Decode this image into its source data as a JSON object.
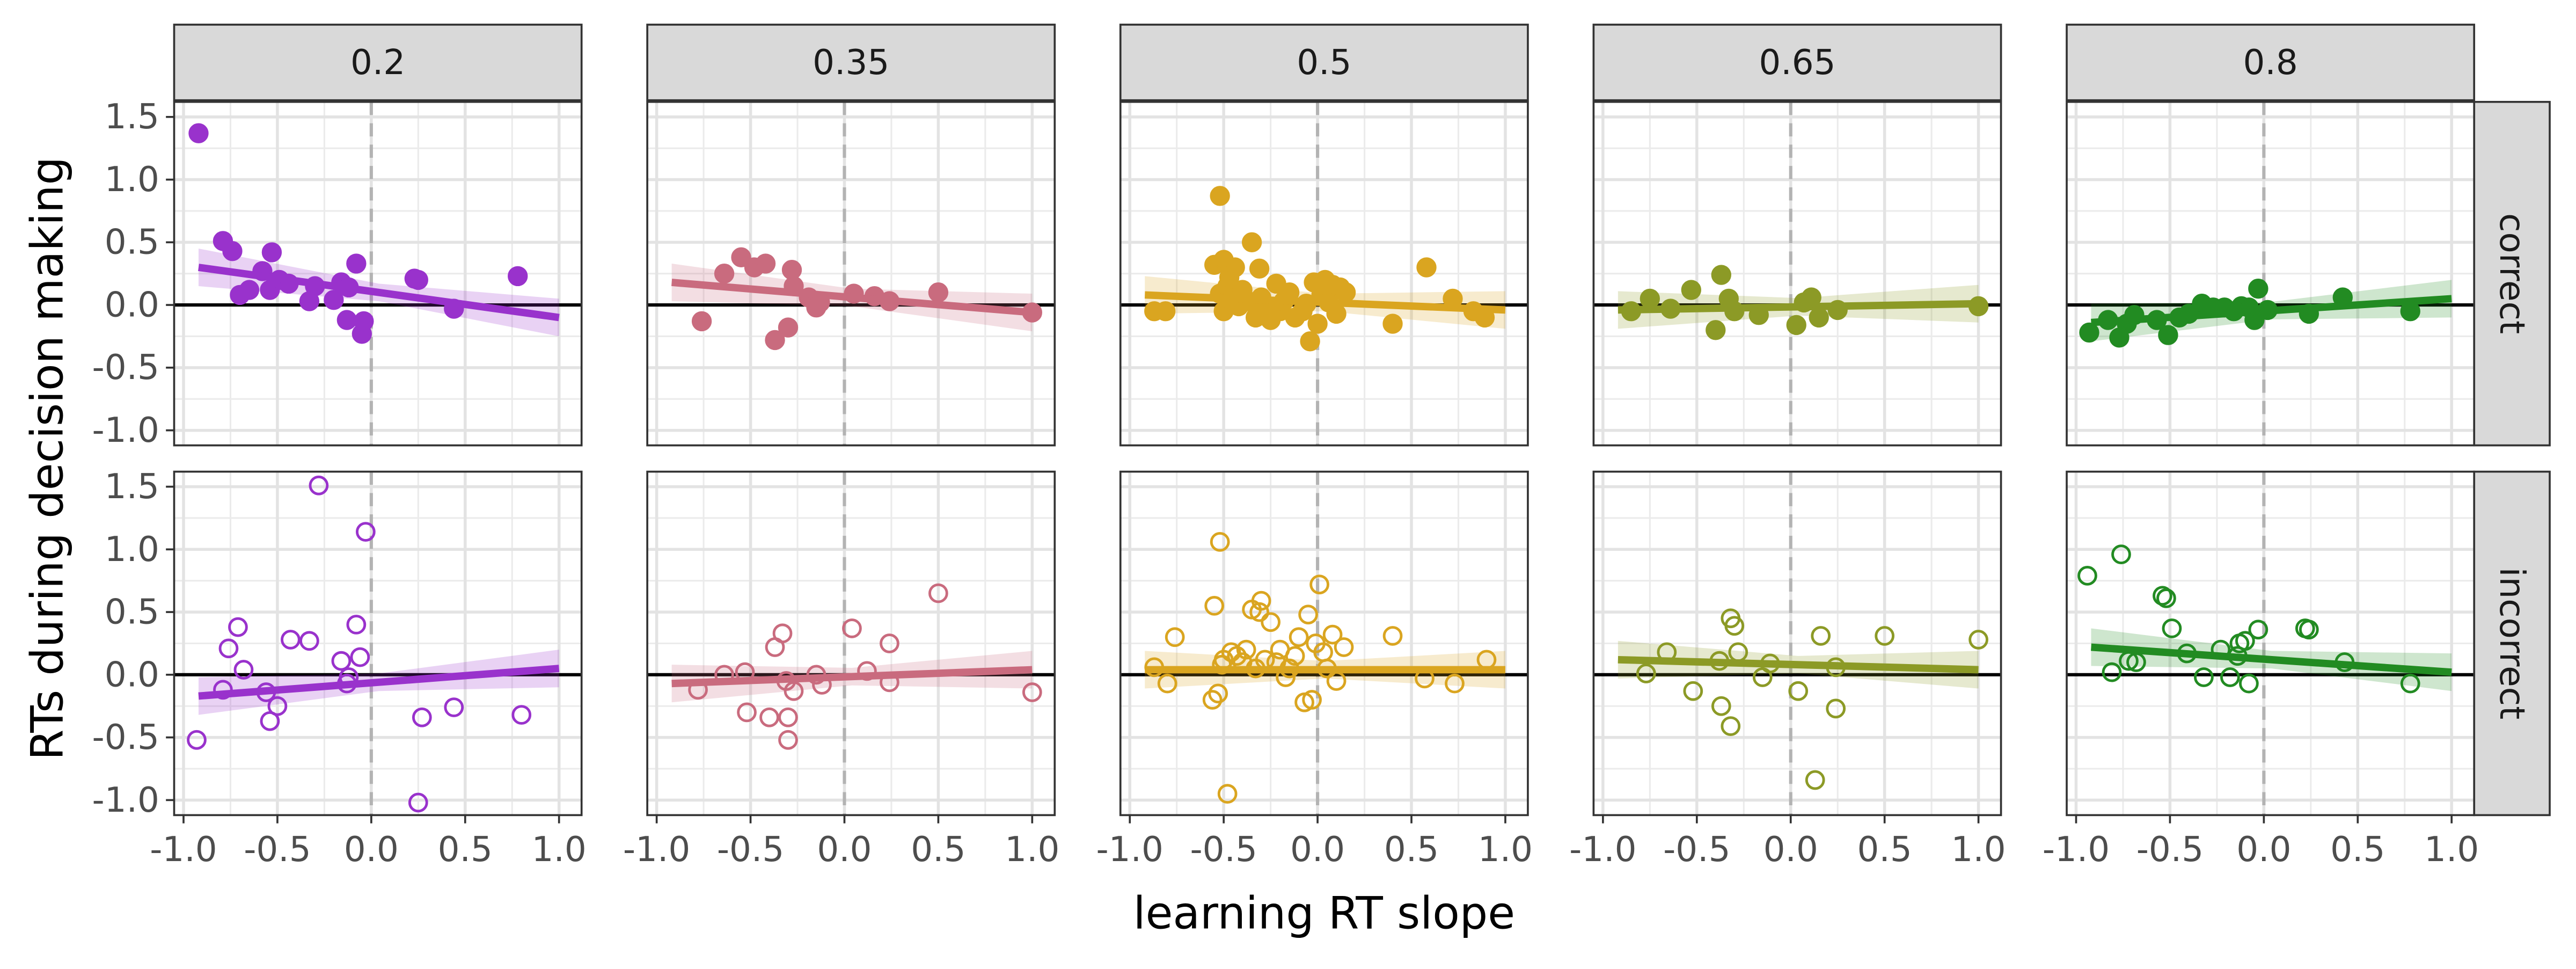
{
  "chart_data": {
    "type": "scatter",
    "facet_columns": [
      "0.2",
      "0.35",
      "0.5",
      "0.65",
      "0.8"
    ],
    "facet_rows": [
      "correct",
      "incorrect"
    ],
    "xlabel": "learning RT slope",
    "ylabel": "RTs during decision making",
    "xlim": [
      -1.0,
      1.0
    ],
    "ylim": [
      -1.0,
      1.5
    ],
    "x_ticks": [
      "-1.0",
      "-0.5",
      "0.0",
      "0.5",
      "1.0"
    ],
    "y_ticks": [
      "-1.0",
      "-0.5",
      "0.0",
      "0.5",
      "1.0",
      "1.5"
    ],
    "colors": [
      "#9932CC",
      "#C96B7E",
      "#DAA520",
      "#8C9A26",
      "#228B22"
    ],
    "grid": true,
    "reference_lines": {
      "horizontal_y": 0,
      "vertical_x": 0
    },
    "panels": [
      {
        "column": "0.2",
        "row": "correct",
        "fit": [
          [
            -0.92,
            0.3
          ],
          [
            1.0,
            -0.1
          ]
        ],
        "points": [
          [
            -0.92,
            1.37
          ],
          [
            -0.79,
            0.51
          ],
          [
            -0.74,
            0.43
          ],
          [
            -0.7,
            0.08
          ],
          [
            -0.65,
            0.12
          ],
          [
            -0.58,
            0.27
          ],
          [
            -0.54,
            0.12
          ],
          [
            -0.53,
            0.42
          ],
          [
            -0.49,
            0.2
          ],
          [
            -0.44,
            0.17
          ],
          [
            -0.33,
            0.03
          ],
          [
            -0.3,
            0.15
          ],
          [
            -0.2,
            0.04
          ],
          [
            -0.16,
            0.18
          ],
          [
            -0.13,
            -0.12
          ],
          [
            -0.12,
            0.14
          ],
          [
            -0.08,
            0.33
          ],
          [
            -0.05,
            -0.23
          ],
          [
            -0.04,
            -0.13
          ],
          [
            0.23,
            0.21
          ],
          [
            0.25,
            0.2
          ],
          [
            0.44,
            -0.03
          ],
          [
            0.78,
            0.23
          ]
        ]
      },
      {
        "column": "0.35",
        "row": "correct",
        "fit": [
          [
            -0.92,
            0.18
          ],
          [
            1.0,
            -0.06
          ]
        ],
        "points": [
          [
            -0.76,
            -0.13
          ],
          [
            -0.64,
            0.25
          ],
          [
            -0.55,
            0.38
          ],
          [
            -0.48,
            0.3
          ],
          [
            -0.42,
            0.33
          ],
          [
            -0.37,
            -0.28
          ],
          [
            -0.3,
            -0.18
          ],
          [
            -0.28,
            0.28
          ],
          [
            -0.27,
            0.15
          ],
          [
            -0.19,
            0.06
          ],
          [
            -0.15,
            -0.02
          ],
          [
            -0.13,
            0.02
          ],
          [
            0.05,
            0.09
          ],
          [
            0.16,
            0.07
          ],
          [
            0.24,
            0.03
          ],
          [
            0.5,
            0.1
          ],
          [
            1.0,
            -0.06
          ]
        ]
      },
      {
        "column": "0.5",
        "row": "correct",
        "fit": [
          [
            -0.92,
            0.08
          ],
          [
            1.0,
            -0.04
          ]
        ],
        "points": [
          [
            -0.87,
            -0.05
          ],
          [
            -0.81,
            -0.05
          ],
          [
            -0.55,
            0.32
          ],
          [
            -0.52,
            0.87
          ],
          [
            -0.52,
            0.09
          ],
          [
            -0.5,
            0.36
          ],
          [
            -0.5,
            -0.05
          ],
          [
            -0.48,
            0.15
          ],
          [
            -0.47,
            0.22
          ],
          [
            -0.46,
            0.02
          ],
          [
            -0.44,
            0.3
          ],
          [
            -0.42,
            -0.01
          ],
          [
            -0.4,
            0.12
          ],
          [
            -0.37,
            0.03
          ],
          [
            -0.35,
            0.5
          ],
          [
            -0.33,
            -0.1
          ],
          [
            -0.31,
            0.29
          ],
          [
            -0.3,
            0.06
          ],
          [
            -0.28,
            -0.02
          ],
          [
            -0.25,
            -0.12
          ],
          [
            -0.22,
            0.17
          ],
          [
            -0.2,
            -0.05
          ],
          [
            -0.18,
            0.03
          ],
          [
            -0.15,
            0.1
          ],
          [
            -0.12,
            -0.1
          ],
          [
            -0.08,
            -0.05
          ],
          [
            -0.06,
            0.01
          ],
          [
            -0.04,
            -0.29
          ],
          [
            -0.02,
            0.18
          ],
          [
            0.0,
            -0.15
          ],
          [
            0.02,
            0.08
          ],
          [
            0.04,
            0.2
          ],
          [
            0.06,
            0.02
          ],
          [
            0.08,
            0.16
          ],
          [
            0.1,
            -0.07
          ],
          [
            0.12,
            0.14
          ],
          [
            0.15,
            0.1
          ],
          [
            0.4,
            -0.15
          ],
          [
            0.58,
            0.3
          ],
          [
            0.72,
            0.05
          ],
          [
            0.83,
            -0.05
          ],
          [
            0.89,
            -0.1
          ]
        ]
      },
      {
        "column": "0.65",
        "row": "correct",
        "fit": [
          [
            -0.92,
            -0.04
          ],
          [
            1.0,
            0.01
          ]
        ],
        "points": [
          [
            -0.85,
            -0.05
          ],
          [
            -0.75,
            0.05
          ],
          [
            -0.64,
            -0.03
          ],
          [
            -0.53,
            0.12
          ],
          [
            -0.4,
            -0.2
          ],
          [
            -0.37,
            0.24
          ],
          [
            -0.33,
            0.05
          ],
          [
            -0.3,
            -0.05
          ],
          [
            -0.17,
            -0.08
          ],
          [
            0.03,
            -0.16
          ],
          [
            0.07,
            0.02
          ],
          [
            0.11,
            0.06
          ],
          [
            0.15,
            -0.1
          ],
          [
            0.25,
            -0.04
          ],
          [
            1.0,
            -0.01
          ]
        ]
      },
      {
        "column": "0.8",
        "row": "correct",
        "fit": [
          [
            -0.92,
            -0.14
          ],
          [
            1.0,
            0.05
          ]
        ],
        "points": [
          [
            -0.93,
            -0.22
          ],
          [
            -0.83,
            -0.12
          ],
          [
            -0.77,
            -0.26
          ],
          [
            -0.73,
            -0.15
          ],
          [
            -0.69,
            -0.08
          ],
          [
            -0.57,
            -0.12
          ],
          [
            -0.51,
            -0.24
          ],
          [
            -0.45,
            -0.1
          ],
          [
            -0.4,
            -0.07
          ],
          [
            -0.33,
            0.01
          ],
          [
            -0.27,
            -0.02
          ],
          [
            -0.21,
            -0.02
          ],
          [
            -0.16,
            -0.05
          ],
          [
            -0.12,
            -0.01
          ],
          [
            -0.08,
            -0.02
          ],
          [
            -0.05,
            -0.12
          ],
          [
            -0.03,
            0.13
          ],
          [
            0.02,
            -0.04
          ],
          [
            0.24,
            -0.07
          ],
          [
            0.42,
            0.06
          ],
          [
            0.78,
            -0.05
          ]
        ]
      },
      {
        "column": "0.2",
        "row": "incorrect",
        "fit": [
          [
            -0.92,
            -0.17
          ],
          [
            1.0,
            0.05
          ]
        ],
        "points": [
          [
            -0.93,
            -0.52
          ],
          [
            -0.79,
            -0.12
          ],
          [
            -0.76,
            0.21
          ],
          [
            -0.71,
            0.38
          ],
          [
            -0.68,
            0.04
          ],
          [
            -0.56,
            -0.14
          ],
          [
            -0.54,
            -0.37
          ],
          [
            -0.5,
            -0.25
          ],
          [
            -0.43,
            0.28
          ],
          [
            -0.33,
            0.27
          ],
          [
            -0.28,
            1.51
          ],
          [
            -0.16,
            0.11
          ],
          [
            -0.13,
            -0.07
          ],
          [
            -0.12,
            -0.02
          ],
          [
            -0.08,
            0.4
          ],
          [
            -0.06,
            0.14
          ],
          [
            -0.03,
            1.14
          ],
          [
            0.25,
            -1.02
          ],
          [
            0.27,
            -0.34
          ],
          [
            0.44,
            -0.26
          ],
          [
            0.8,
            -0.32
          ]
        ]
      },
      {
        "column": "0.35",
        "row": "incorrect",
        "fit": [
          [
            -0.92,
            -0.07
          ],
          [
            1.0,
            0.04
          ]
        ],
        "points": [
          [
            -0.78,
            -0.12
          ],
          [
            -0.64,
            0.0
          ],
          [
            -0.53,
            0.02
          ],
          [
            -0.52,
            -0.3
          ],
          [
            -0.4,
            -0.34
          ],
          [
            -0.37,
            0.22
          ],
          [
            -0.33,
            0.33
          ],
          [
            -0.31,
            -0.05
          ],
          [
            -0.3,
            -0.34
          ],
          [
            -0.3,
            -0.52
          ],
          [
            -0.27,
            -0.13
          ],
          [
            -0.15,
            0.0
          ],
          [
            -0.12,
            -0.08
          ],
          [
            0.04,
            0.37
          ],
          [
            0.12,
            0.03
          ],
          [
            0.24,
            0.25
          ],
          [
            0.24,
            -0.06
          ],
          [
            0.5,
            0.65
          ],
          [
            1.0,
            -0.14
          ]
        ]
      },
      {
        "column": "0.5",
        "row": "incorrect",
        "fit": [
          [
            -0.92,
            0.04
          ],
          [
            1.0,
            0.04
          ]
        ],
        "points": [
          [
            -0.87,
            0.06
          ],
          [
            -0.8,
            -0.07
          ],
          [
            -0.76,
            0.3
          ],
          [
            -0.56,
            -0.2
          ],
          [
            -0.55,
            0.55
          ],
          [
            -0.53,
            -0.15
          ],
          [
            -0.52,
            1.06
          ],
          [
            -0.51,
            0.08
          ],
          [
            -0.5,
            0.12
          ],
          [
            -0.48,
            -0.95
          ],
          [
            -0.46,
            0.18
          ],
          [
            -0.43,
            0.15
          ],
          [
            -0.4,
            0.1
          ],
          [
            -0.38,
            0.2
          ],
          [
            -0.35,
            0.52
          ],
          [
            -0.33,
            0.05
          ],
          [
            -0.31,
            0.5
          ],
          [
            -0.3,
            0.59
          ],
          [
            -0.28,
            0.12
          ],
          [
            -0.25,
            0.42
          ],
          [
            -0.22,
            0.1
          ],
          [
            -0.2,
            0.2
          ],
          [
            -0.17,
            -0.02
          ],
          [
            -0.15,
            0.05
          ],
          [
            -0.12,
            0.15
          ],
          [
            -0.1,
            0.3
          ],
          [
            -0.07,
            -0.22
          ],
          [
            -0.05,
            0.48
          ],
          [
            -0.03,
            -0.2
          ],
          [
            -0.01,
            0.25
          ],
          [
            0.01,
            0.72
          ],
          [
            0.03,
            0.18
          ],
          [
            0.05,
            0.05
          ],
          [
            0.08,
            0.32
          ],
          [
            0.1,
            -0.05
          ],
          [
            0.14,
            0.22
          ],
          [
            0.4,
            0.31
          ],
          [
            0.57,
            -0.03
          ],
          [
            0.73,
            -0.07
          ],
          [
            0.9,
            0.12
          ]
        ]
      },
      {
        "column": "0.65",
        "row": "incorrect",
        "fit": [
          [
            -0.92,
            0.12
          ],
          [
            1.0,
            0.04
          ]
        ],
        "points": [
          [
            -0.77,
            0.01
          ],
          [
            -0.66,
            0.18
          ],
          [
            -0.52,
            -0.13
          ],
          [
            -0.38,
            0.11
          ],
          [
            -0.37,
            -0.25
          ],
          [
            -0.32,
            -0.41
          ],
          [
            -0.32,
            0.45
          ],
          [
            -0.3,
            0.39
          ],
          [
            -0.28,
            0.18
          ],
          [
            -0.15,
            -0.02
          ],
          [
            -0.11,
            0.09
          ],
          [
            0.04,
            -0.13
          ],
          [
            0.13,
            -0.84
          ],
          [
            0.16,
            0.31
          ],
          [
            0.24,
            -0.27
          ],
          [
            0.24,
            0.06
          ],
          [
            0.5,
            0.31
          ],
          [
            1.0,
            0.28
          ]
        ]
      },
      {
        "column": "0.8",
        "row": "incorrect",
        "fit": [
          [
            -0.92,
            0.22
          ],
          [
            1.0,
            0.02
          ]
        ],
        "points": [
          [
            -0.94,
            0.79
          ],
          [
            -0.81,
            0.02
          ],
          [
            -0.76,
            0.96
          ],
          [
            -0.72,
            0.11
          ],
          [
            -0.68,
            0.1
          ],
          [
            -0.54,
            0.63
          ],
          [
            -0.52,
            0.61
          ],
          [
            -0.49,
            0.37
          ],
          [
            -0.41,
            0.17
          ],
          [
            -0.32,
            -0.02
          ],
          [
            -0.23,
            0.2
          ],
          [
            -0.18,
            -0.02
          ],
          [
            -0.14,
            0.15
          ],
          [
            -0.13,
            0.25
          ],
          [
            -0.1,
            0.27
          ],
          [
            -0.08,
            -0.07
          ],
          [
            -0.03,
            0.36
          ],
          [
            0.22,
            0.37
          ],
          [
            0.24,
            0.36
          ],
          [
            0.43,
            0.1
          ],
          [
            0.78,
            -0.07
          ]
        ]
      }
    ]
  }
}
